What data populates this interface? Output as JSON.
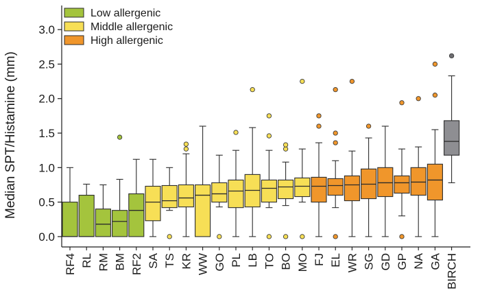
{
  "chart_data": {
    "type": "boxplot",
    "title": "",
    "xlabel": "",
    "ylabel": "Median SPT/Histamine (mm)",
    "ylim": [
      -0.15,
      3.25
    ],
    "yticks": [
      0.0,
      0.5,
      1.0,
      1.5,
      2.0,
      2.5,
      3.0
    ],
    "ytick_labels": [
      "0.0",
      "0.5",
      "1.0",
      "1.5",
      "2.0",
      "2.5",
      "3.0"
    ],
    "grid": false,
    "legend_position": "top-left",
    "legend": [
      {
        "key": "low",
        "label": "Low allergenic",
        "color": "#a4c43d"
      },
      {
        "key": "mid",
        "label": "Middle allergenic",
        "color": "#f7df56"
      },
      {
        "key": "high",
        "label": "High allergenic",
        "color": "#f0962b"
      }
    ],
    "group_colors": {
      "low": "#a4c43d",
      "mid": "#f7df56",
      "high": "#f0962b",
      "ref": "#8e8e92"
    },
    "outlier_colors": {
      "low": "#a4c43d",
      "mid": "#f7df56",
      "high": "#f0962b",
      "ref": "#6e6e72"
    },
    "boxes": [
      {
        "label": "RF4",
        "group": "low",
        "whisker_low": 0.0,
        "q1": 0.0,
        "median": 0.0,
        "q3": 0.5,
        "whisker_high": 1.0,
        "outliers": []
      },
      {
        "label": "RL",
        "group": "low",
        "whisker_low": 0.0,
        "q1": 0.0,
        "median": 0.0,
        "q3": 0.6,
        "whisker_high": 0.76,
        "outliers": []
      },
      {
        "label": "RM",
        "group": "low",
        "whisker_low": 0.0,
        "q1": 0.0,
        "median": 0.18,
        "q3": 0.4,
        "whisker_high": 0.75,
        "outliers": []
      },
      {
        "label": "BM",
        "group": "low",
        "whisker_low": 0.0,
        "q1": 0.0,
        "median": 0.22,
        "q3": 0.38,
        "whisker_high": 0.83,
        "outliers": [
          1.44
        ]
      },
      {
        "label": "RF2",
        "group": "low",
        "whisker_low": 0.0,
        "q1": 0.0,
        "median": 0.38,
        "q3": 0.62,
        "whisker_high": 1.12,
        "outliers": []
      },
      {
        "label": "SA",
        "group": "mid",
        "whisker_low": 0.0,
        "q1": 0.23,
        "median": 0.5,
        "q3": 0.73,
        "whisker_high": 1.12,
        "outliers": []
      },
      {
        "label": "TS",
        "group": "mid",
        "whisker_low": 0.38,
        "q1": 0.42,
        "median": 0.52,
        "q3": 0.74,
        "whisker_high": 1.0,
        "outliers": [
          0.0
        ]
      },
      {
        "label": "KR",
        "group": "mid",
        "whisker_low": 0.0,
        "q1": 0.43,
        "median": 0.56,
        "q3": 0.75,
        "whisker_high": 1.2,
        "outliers": [
          1.27,
          1.34
        ]
      },
      {
        "label": "WW",
        "group": "mid",
        "whisker_low": 0.0,
        "q1": 0.0,
        "median": 0.6,
        "q3": 0.75,
        "whisker_high": 1.6,
        "outliers": []
      },
      {
        "label": "GO",
        "group": "mid",
        "whisker_low": 0.43,
        "q1": 0.5,
        "median": 0.62,
        "q3": 0.78,
        "whisker_high": 1.18,
        "outliers": [
          0.0
        ]
      },
      {
        "label": "PL",
        "group": "mid",
        "whisker_low": 0.0,
        "q1": 0.42,
        "median": 0.66,
        "q3": 0.82,
        "whisker_high": 1.25,
        "outliers": [
          1.51
        ]
      },
      {
        "label": "LB",
        "group": "mid",
        "whisker_low": 0.0,
        "q1": 0.43,
        "median": 0.67,
        "q3": 0.9,
        "whisker_high": 1.58,
        "outliers": [
          2.13
        ]
      },
      {
        "label": "TO",
        "group": "mid",
        "whisker_low": 0.42,
        "q1": 0.5,
        "median": 0.7,
        "q3": 0.82,
        "whisker_high": 1.25,
        "outliers": [
          0.0,
          1.46,
          1.75
        ]
      },
      {
        "label": "BO",
        "group": "mid",
        "whisker_low": 0.45,
        "q1": 0.55,
        "median": 0.72,
        "q3": 0.82,
        "whisker_high": 1.08,
        "outliers": [
          0.0,
          1.27,
          1.33
        ]
      },
      {
        "label": "MO",
        "group": "mid",
        "whisker_low": 0.5,
        "q1": 0.58,
        "median": 0.73,
        "q3": 0.85,
        "whisker_high": 1.27,
        "outliers": [
          0.0,
          2.25
        ]
      },
      {
        "label": "FJ",
        "group": "high",
        "whisker_low": 0.0,
        "q1": 0.5,
        "median": 0.73,
        "q3": 0.86,
        "whisker_high": 1.36,
        "outliers": [
          1.6,
          1.75
        ]
      },
      {
        "label": "EL",
        "group": "high",
        "whisker_low": 0.42,
        "q1": 0.6,
        "median": 0.74,
        "q3": 0.84,
        "whisker_high": 1.1,
        "outliers": [
          0.0,
          1.36,
          1.5,
          2.13
        ]
      },
      {
        "label": "WR",
        "group": "high",
        "whisker_low": 0.0,
        "q1": 0.52,
        "median": 0.75,
        "q3": 0.88,
        "whisker_high": 1.24,
        "outliers": [
          2.25
        ]
      },
      {
        "label": "SG",
        "group": "high",
        "whisker_low": 0.0,
        "q1": 0.55,
        "median": 0.76,
        "q3": 0.98,
        "whisker_high": 1.43,
        "outliers": [
          1.6
        ]
      },
      {
        "label": "GD",
        "group": "high",
        "whisker_low": 0.0,
        "q1": 0.58,
        "median": 0.78,
        "q3": 1.0,
        "whisker_high": 1.6,
        "outliers": []
      },
      {
        "label": "GP",
        "group": "high",
        "whisker_low": 0.3,
        "q1": 0.63,
        "median": 0.78,
        "q3": 0.88,
        "whisker_high": 1.27,
        "outliers": [
          0.0,
          1.94
        ]
      },
      {
        "label": "NA",
        "group": "high",
        "whisker_low": 0.0,
        "q1": 0.6,
        "median": 0.79,
        "q3": 1.0,
        "whisker_high": 1.3,
        "outliers": [
          2.0
        ]
      },
      {
        "label": "GA",
        "group": "high",
        "whisker_low": 0.0,
        "q1": 0.53,
        "median": 0.82,
        "q3": 1.05,
        "whisker_high": 1.55,
        "outliers": [
          2.05,
          2.5
        ]
      },
      {
        "label": "BIRCH",
        "group": "ref",
        "whisker_low": 0.78,
        "q1": 1.18,
        "median": 1.38,
        "q3": 1.68,
        "whisker_high": 2.33,
        "outliers": [
          2.62
        ]
      }
    ]
  }
}
